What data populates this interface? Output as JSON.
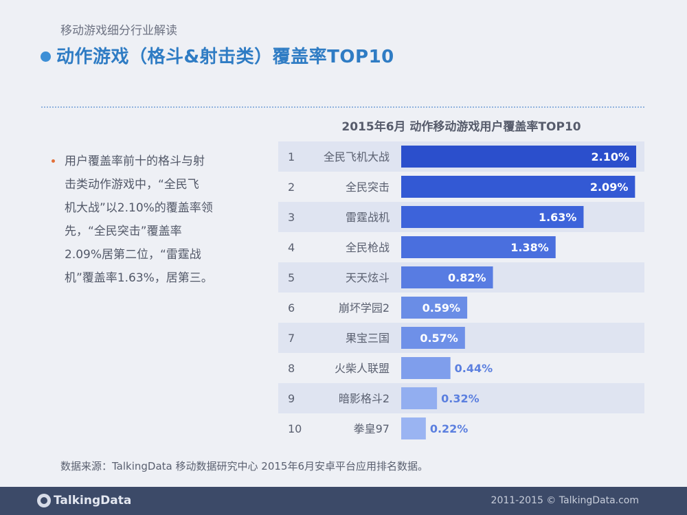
{
  "header": {
    "subtitle": "移动游戏细分行业解读",
    "title": "动作游戏（格斗&射击类）覆盖率TOP10"
  },
  "bullet": {
    "line1": "用户覆盖率前十的格斗与射",
    "line2": "击类动作游戏中，“全民飞",
    "line3": "机大战”以2.10%的覆盖率领",
    "line4": "先，“全民突击”覆盖率",
    "line5": "2.09%居第二位，“雷霆战",
    "line6": "机”覆盖率1.63%，居第三。"
  },
  "chart_data": {
    "type": "bar",
    "orientation": "horizontal",
    "title": "2015年6月 动作移动游戏用户覆盖率TOP10",
    "ranks": [
      "1",
      "2",
      "3",
      "4",
      "5",
      "6",
      "7",
      "8",
      "9",
      "10"
    ],
    "categories": [
      "全民飞机大战",
      "全民突击",
      "雷霆战机",
      "全民枪战",
      "天天炫斗",
      "崩坏学园2",
      "果宝三国",
      "火柴人联盟",
      "暗影格斗2",
      "拳皇97"
    ],
    "values": [
      2.1,
      2.09,
      1.63,
      1.38,
      0.82,
      0.59,
      0.57,
      0.44,
      0.32,
      0.22
    ],
    "labels": [
      "2.10%",
      "2.09%",
      "1.63%",
      "1.38%",
      "0.82%",
      "0.59%",
      "0.57%",
      "0.44%",
      "0.32%",
      "0.22%"
    ],
    "bar_colors": [
      "#2b4fcc",
      "#3359d4",
      "#3d63da",
      "#4a6fde",
      "#587ce2",
      "#6a8de6",
      "#6e90e8",
      "#7f9eec",
      "#92aef0",
      "#9ab4f2"
    ],
    "stripe_color": "#dfe4f1"
  },
  "source": "数据来源：TalkingData 移动数据研究中心 2015年6月安卓平台应用排名数据。",
  "footer": {
    "logo": "TalkingData",
    "copyright": "2011-2015 © TalkingData.com"
  }
}
